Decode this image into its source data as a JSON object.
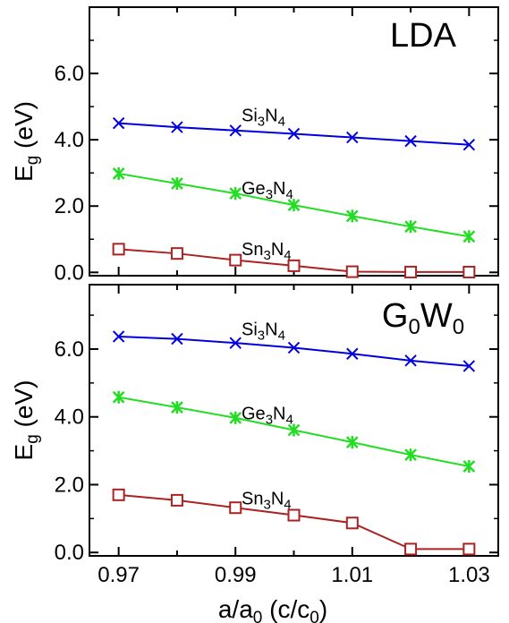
{
  "chart_data": {
    "type": "line",
    "x": [
      0.97,
      0.98,
      0.99,
      1.0,
      1.01,
      1.02,
      1.03
    ],
    "xlabel": {
      "base": "a/a",
      "sub": "0",
      "mid": " (c/c",
      "sub2": "0",
      "end": ")"
    },
    "xlim": [
      0.965,
      1.035
    ],
    "xticks": [
      "0.97",
      "0.99",
      "1.01",
      "1.03"
    ],
    "colors": {
      "Si3N4": "#0000dd",
      "Ge3N4": "#22dd22",
      "Sn3N4": "#aa2222"
    },
    "panels": [
      {
        "label": {
          "base": "LDA",
          "sub1": "",
          "mid": "",
          "sub2": ""
        },
        "ylabel": {
          "base": "E",
          "sub": "g",
          "rest": " (eV)"
        },
        "ylim": [
          -0.1,
          8.0
        ],
        "yticks": [
          "0.0",
          "2.0",
          "4.0",
          "6.0"
        ],
        "series": [
          {
            "key": "Si3N4",
            "label": {
              "a": "Si",
              "b": "3",
              "c": "N",
              "d": "4"
            },
            "marker": "x",
            "values": [
              4.5,
              4.38,
              4.28,
              4.18,
              4.07,
              3.96,
              3.85
            ]
          },
          {
            "key": "Ge3N4",
            "label": {
              "a": "Ge",
              "b": "3",
              "c": "N",
              "d": "4"
            },
            "marker": "star",
            "values": [
              2.98,
              2.68,
              2.38,
              2.03,
              1.7,
              1.38,
              1.08
            ]
          },
          {
            "key": "Sn3N4",
            "label": {
              "a": "Sn",
              "b": "3",
              "c": "N",
              "d": "4"
            },
            "marker": "square",
            "values": [
              0.7,
              0.57,
              0.37,
              0.2,
              0.02,
              0.01,
              0.01
            ]
          }
        ]
      },
      {
        "label": {
          "base": "G",
          "sub1": "0",
          "mid": "W",
          "sub2": "0"
        },
        "ylabel": {
          "base": "E",
          "sub": "g",
          "rest": " (eV)"
        },
        "ylim": [
          -0.1,
          7.9
        ],
        "yticks": [
          "0.0",
          "2.0",
          "4.0",
          "6.0"
        ],
        "series": [
          {
            "key": "Si3N4",
            "label": {
              "a": "Si",
              "b": "3",
              "c": "N",
              "d": "4"
            },
            "marker": "x",
            "values": [
              6.37,
              6.3,
              6.18,
              6.04,
              5.86,
              5.66,
              5.5
            ]
          },
          {
            "key": "Ge3N4",
            "label": {
              "a": "Ge",
              "b": "3",
              "c": "N",
              "d": "4"
            },
            "marker": "star",
            "values": [
              4.58,
              4.28,
              3.97,
              3.61,
              3.25,
              2.88,
              2.54
            ]
          },
          {
            "key": "Sn3N4",
            "label": {
              "a": "Sn",
              "b": "3",
              "c": "N",
              "d": "4"
            },
            "marker": "square",
            "values": [
              1.7,
              1.54,
              1.32,
              1.1,
              0.87,
              0.1,
              0.1
            ]
          }
        ]
      }
    ]
  }
}
